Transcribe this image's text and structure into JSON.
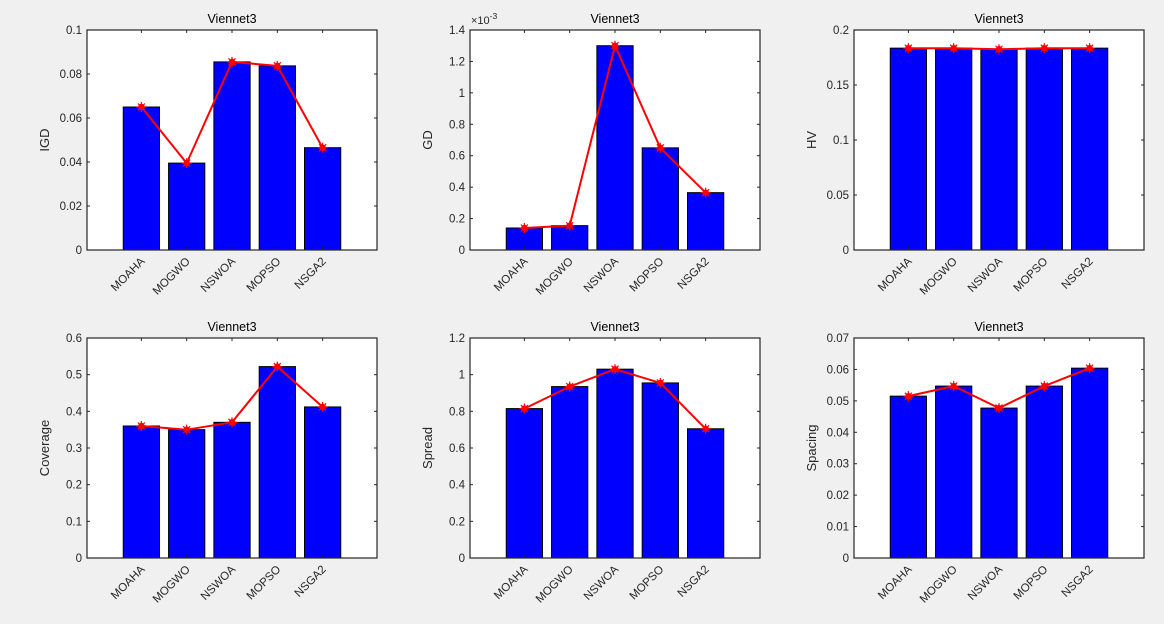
{
  "figure": {
    "background": "#f0f0f0",
    "bar_color": "#0000ff",
    "bar_edge_color": "#000000",
    "line_color": "#ff0000",
    "marker": "asterisk-dot"
  },
  "chart_data": [
    {
      "type": "bar",
      "title": "Viennet3",
      "xlabel": "",
      "ylabel": "IGD",
      "categories": [
        "MOAHA",
        "MOGWO",
        "NSWOA",
        "MOPSO",
        "NSGA2"
      ],
      "values": [
        0.065,
        0.0395,
        0.0855,
        0.0837,
        0.0465
      ],
      "line_overlay": true,
      "ylim": [
        0,
        0.1
      ],
      "yticks": [
        0,
        0.02,
        0.04,
        0.06,
        0.08,
        0.1
      ],
      "ytick_labels": [
        "0",
        "0.02",
        "0.04",
        "0.06",
        "0.08",
        "0.1"
      ],
      "exponent_label": "",
      "grid": false
    },
    {
      "type": "bar",
      "title": "Viennet3",
      "xlabel": "",
      "ylabel": "GD",
      "categories": [
        "MOAHA",
        "MOGWO",
        "NSWOA",
        "MOPSO",
        "NSGA2"
      ],
      "values": [
        0.14,
        0.155,
        1.3,
        0.65,
        0.365
      ],
      "value_scale": "x10^-3",
      "line_overlay": true,
      "ylim": [
        0,
        1.4
      ],
      "yticks": [
        0,
        0.2,
        0.4,
        0.6,
        0.8,
        1,
        1.2,
        1.4
      ],
      "ytick_labels": [
        "0",
        "0.2",
        "0.4",
        "0.6",
        "0.8",
        "1",
        "1.2",
        "1.4"
      ],
      "exponent_label": "×10",
      "exponent_power": "-3",
      "grid": false
    },
    {
      "type": "bar",
      "title": "Viennet3",
      "xlabel": "",
      "ylabel": "HV",
      "categories": [
        "MOAHA",
        "MOGWO",
        "NSWOA",
        "MOPSO",
        "NSGA2"
      ],
      "values": [
        0.1835,
        0.1835,
        0.1825,
        0.1835,
        0.1835
      ],
      "line_overlay": true,
      "ylim": [
        0,
        0.2
      ],
      "yticks": [
        0,
        0.05,
        0.1,
        0.15,
        0.2
      ],
      "ytick_labels": [
        "0",
        "0.05",
        "0.1",
        "0.15",
        "0.2"
      ],
      "exponent_label": "",
      "grid": false
    },
    {
      "type": "bar",
      "title": "Viennet3",
      "xlabel": "",
      "ylabel": "Coverage",
      "categories": [
        "MOAHA",
        "MOGWO",
        "NSWOA",
        "MOPSO",
        "NSGA2"
      ],
      "values": [
        0.36,
        0.35,
        0.37,
        0.522,
        0.412
      ],
      "line_overlay": true,
      "ylim": [
        0,
        0.6
      ],
      "yticks": [
        0,
        0.1,
        0.2,
        0.3,
        0.4,
        0.5,
        0.6
      ],
      "ytick_labels": [
        "0",
        "0.1",
        "0.2",
        "0.3",
        "0.4",
        "0.5",
        "0.6"
      ],
      "exponent_label": "",
      "grid": false
    },
    {
      "type": "bar",
      "title": "Viennet3",
      "xlabel": "",
      "ylabel": "Spread",
      "categories": [
        "MOAHA",
        "MOGWO",
        "NSWOA",
        "MOPSO",
        "NSGA2"
      ],
      "values": [
        0.815,
        0.935,
        1.03,
        0.955,
        0.705
      ],
      "line_overlay": true,
      "ylim": [
        0,
        1.2
      ],
      "yticks": [
        0,
        0.2,
        0.4,
        0.6,
        0.8,
        1,
        1.2
      ],
      "ytick_labels": [
        "0",
        "0.2",
        "0.4",
        "0.6",
        "0.8",
        "1",
        "1.2"
      ],
      "exponent_label": "",
      "grid": false
    },
    {
      "type": "bar",
      "title": "Viennet3",
      "xlabel": "",
      "ylabel": "Spacing",
      "categories": [
        "MOAHA",
        "MOGWO",
        "NSWOA",
        "MOPSO",
        "NSGA2"
      ],
      "values": [
        0.0515,
        0.0547,
        0.0477,
        0.0547,
        0.0604
      ],
      "line_overlay": true,
      "ylim": [
        0,
        0.07
      ],
      "yticks": [
        0,
        0.01,
        0.02,
        0.03,
        0.04,
        0.05,
        0.06,
        0.07
      ],
      "ytick_labels": [
        "0",
        "0.01",
        "0.02",
        "0.03",
        "0.04",
        "0.05",
        "0.06",
        "0.07"
      ],
      "exponent_label": "",
      "grid": false
    }
  ]
}
